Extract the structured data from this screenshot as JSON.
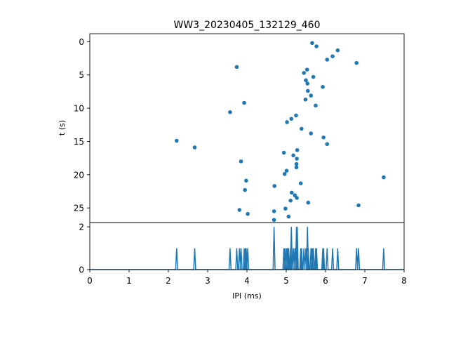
{
  "chart_data": [
    {
      "type": "scatter",
      "title": "WW3_20230405_132129_460",
      "xlabel": "",
      "ylabel": "t (s)",
      "xlim": [
        0,
        8
      ],
      "ylim": [
        27.2,
        -1.2
      ],
      "y_inverted": true,
      "yticks": [
        0,
        5,
        10,
        15,
        20,
        25
      ],
      "marker_color": "#1f77b4",
      "points": [
        {
          "x": 5.66,
          "y": 0.2
        },
        {
          "x": 5.77,
          "y": 0.7
        },
        {
          "x": 6.31,
          "y": 1.3
        },
        {
          "x": 6.18,
          "y": 2.2
        },
        {
          "x": 6.04,
          "y": 2.7
        },
        {
          "x": 6.79,
          "y": 3.2
        },
        {
          "x": 3.74,
          "y": 3.8
        },
        {
          "x": 5.53,
          "y": 4.2
        },
        {
          "x": 5.45,
          "y": 4.7
        },
        {
          "x": 5.69,
          "y": 5.3
        },
        {
          "x": 5.5,
          "y": 5.8
        },
        {
          "x": 5.54,
          "y": 6.3
        },
        {
          "x": 5.93,
          "y": 6.8
        },
        {
          "x": 5.55,
          "y": 7.4
        },
        {
          "x": 5.63,
          "y": 8.1
        },
        {
          "x": 5.49,
          "y": 8.7
        },
        {
          "x": 3.93,
          "y": 9.2
        },
        {
          "x": 5.75,
          "y": 9.6
        },
        {
          "x": 3.57,
          "y": 10.6
        },
        {
          "x": 5.25,
          "y": 11.1
        },
        {
          "x": 5.13,
          "y": 11.6
        },
        {
          "x": 5.02,
          "y": 12.1
        },
        {
          "x": 5.39,
          "y": 13.1
        },
        {
          "x": 5.63,
          "y": 13.8
        },
        {
          "x": 5.95,
          "y": 14.4
        },
        {
          "x": 2.21,
          "y": 14.9
        },
        {
          "x": 6.04,
          "y": 15.4
        },
        {
          "x": 2.67,
          "y": 15.9
        },
        {
          "x": 5.28,
          "y": 16.3
        },
        {
          "x": 4.94,
          "y": 16.7
        },
        {
          "x": 5.18,
          "y": 17.1
        },
        {
          "x": 5.27,
          "y": 17.6
        },
        {
          "x": 3.85,
          "y": 18.0
        },
        {
          "x": 5.26,
          "y": 18.4
        },
        {
          "x": 5.26,
          "y": 18.9
        },
        {
          "x": 5.01,
          "y": 19.4
        },
        {
          "x": 4.96,
          "y": 19.9
        },
        {
          "x": 7.48,
          "y": 20.4
        },
        {
          "x": 3.98,
          "y": 20.9
        },
        {
          "x": 5.37,
          "y": 21.3
        },
        {
          "x": 4.7,
          "y": 21.7
        },
        {
          "x": 3.95,
          "y": 22.3
        },
        {
          "x": 5.14,
          "y": 22.7
        },
        {
          "x": 5.22,
          "y": 23.1
        },
        {
          "x": 5.27,
          "y": 23.5
        },
        {
          "x": 5.11,
          "y": 23.9
        },
        {
          "x": 5.56,
          "y": 24.2
        },
        {
          "x": 6.84,
          "y": 24.6
        },
        {
          "x": 4.98,
          "y": 25.1
        },
        {
          "x": 3.81,
          "y": 25.3
        },
        {
          "x": 4.69,
          "y": 25.5
        },
        {
          "x": 4.02,
          "y": 25.9
        },
        {
          "x": 5.06,
          "y": 26.3
        },
        {
          "x": 4.69,
          "y": 26.8
        }
      ]
    },
    {
      "type": "line",
      "title": "",
      "xlabel": "IPI (ms)",
      "ylabel": "",
      "xlim": [
        0,
        8
      ],
      "ylim": [
        0,
        2.2
      ],
      "xticks": [
        0,
        1,
        2,
        3,
        4,
        5,
        6,
        7,
        8
      ],
      "yticks": [
        0,
        2
      ],
      "line_color": "#1f77b4",
      "spikes": [
        {
          "x": 2.21,
          "y": 1
        },
        {
          "x": 2.67,
          "y": 1
        },
        {
          "x": 3.57,
          "y": 1
        },
        {
          "x": 3.74,
          "y": 1
        },
        {
          "x": 3.81,
          "y": 1
        },
        {
          "x": 3.85,
          "y": 1
        },
        {
          "x": 3.93,
          "y": 1
        },
        {
          "x": 3.96,
          "y": 1
        },
        {
          "x": 3.98,
          "y": 1
        },
        {
          "x": 4.02,
          "y": 1
        },
        {
          "x": 4.69,
          "y": 2
        },
        {
          "x": 4.94,
          "y": 1
        },
        {
          "x": 4.97,
          "y": 1
        },
        {
          "x": 5.01,
          "y": 1
        },
        {
          "x": 5.04,
          "y": 1
        },
        {
          "x": 5.06,
          "y": 1
        },
        {
          "x": 5.11,
          "y": 1
        },
        {
          "x": 5.13,
          "y": 2
        },
        {
          "x": 5.18,
          "y": 1
        },
        {
          "x": 5.22,
          "y": 1
        },
        {
          "x": 5.26,
          "y": 2
        },
        {
          "x": 5.28,
          "y": 2
        },
        {
          "x": 5.37,
          "y": 1
        },
        {
          "x": 5.39,
          "y": 1
        },
        {
          "x": 5.45,
          "y": 1
        },
        {
          "x": 5.5,
          "y": 1
        },
        {
          "x": 5.54,
          "y": 2
        },
        {
          "x": 5.56,
          "y": 1
        },
        {
          "x": 5.63,
          "y": 1
        },
        {
          "x": 5.66,
          "y": 1
        },
        {
          "x": 5.69,
          "y": 1
        },
        {
          "x": 5.75,
          "y": 1
        },
        {
          "x": 5.77,
          "y": 1
        },
        {
          "x": 5.93,
          "y": 1
        },
        {
          "x": 5.95,
          "y": 1
        },
        {
          "x": 6.04,
          "y": 1
        },
        {
          "x": 6.18,
          "y": 1
        },
        {
          "x": 6.31,
          "y": 1
        },
        {
          "x": 6.79,
          "y": 1
        },
        {
          "x": 6.84,
          "y": 1
        },
        {
          "x": 7.48,
          "y": 1
        }
      ]
    }
  ]
}
